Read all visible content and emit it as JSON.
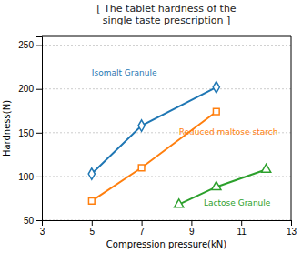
{
  "chart_data": {
    "type": "line",
    "title": "[ The tablet hardness of the\nsingle taste prescription ]",
    "xlabel": "Compression pressure(kN)",
    "ylabel": "Hardness(N)",
    "xlim": [
      3,
      13
    ],
    "ylim": [
      50,
      260
    ],
    "xticks": [
      3,
      5,
      7,
      9,
      11,
      13
    ],
    "yticks": [
      50,
      100,
      150,
      200,
      250
    ],
    "grid": true,
    "series": [
      {
        "x": [
          5,
          7,
          10
        ],
        "values": [
          103,
          158,
          202
        ],
        "marker": "diamond"
      },
      {
        "x": [
          5,
          7,
          10
        ],
        "values": [
          72,
          110,
          174
        ],
        "marker": "square"
      },
      {
        "x": [
          8.5,
          10,
          12
        ],
        "values": [
          68,
          88,
          108
        ],
        "marker": "triangle"
      }
    ],
    "annotations": [
      {
        "text": "Isomalt Granule",
        "x": 5.0,
        "y": 215
      },
      {
        "text": "Reduced maltose starch",
        "x": 8.5,
        "y": 148
      },
      {
        "text": "Lactose Granule",
        "x": 9.5,
        "y": 67
      }
    ]
  }
}
